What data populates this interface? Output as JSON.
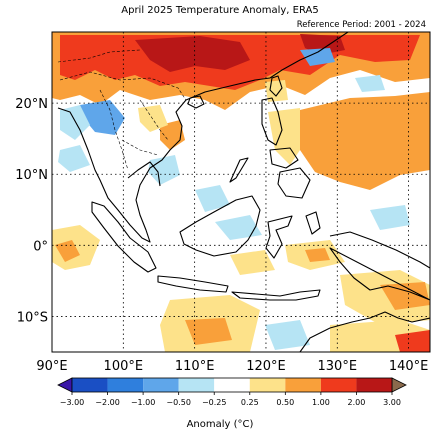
{
  "title": "April 2025 Temperature Anomaly, ERA5",
  "subtitle": "Reference Period: 2001 - 2024",
  "map": {
    "lon_range": [
      90,
      143
    ],
    "lat_range": [
      -15,
      30
    ],
    "lon_ticks": [
      {
        "value": 90,
        "label": "90°E"
      },
      {
        "value": 100,
        "label": "100°E"
      },
      {
        "value": 110,
        "label": "110°E"
      },
      {
        "value": 120,
        "label": "120°E"
      },
      {
        "value": 130,
        "label": "130°E"
      },
      {
        "value": 140,
        "label": "140°E"
      }
    ],
    "lat_ticks": [
      {
        "value": 20,
        "label": "20°N"
      },
      {
        "value": 10,
        "label": "10°N"
      },
      {
        "value": 0,
        "label": "0°"
      },
      {
        "value": -10,
        "label": "10°S"
      }
    ],
    "gridlines": "dotted"
  },
  "colorbar": {
    "label": "Anomaly (°C)",
    "bounds": [
      "−3.00",
      "−2.00",
      "−1.00",
      "−0.50",
      "−0.25",
      "0.25",
      "0.50",
      "1.00",
      "2.00",
      "3.00"
    ],
    "colors": [
      "#1a4fc4",
      "#2f7fdd",
      "#5fa6ea",
      "#b6e4f4",
      "#ffffff",
      "#fde28a",
      "#f9a03a",
      "#ef3a1d",
      "#b81717"
    ],
    "extend_low_color": "#3a16a8",
    "extend_high_color": "#8a6a4c"
  }
}
